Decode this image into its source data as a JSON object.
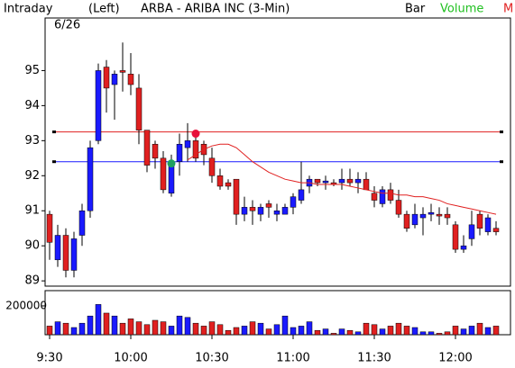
{
  "chart_data": {
    "type": "candlestick",
    "header": {
      "mode": "Intraday",
      "axis_side": "(Left)",
      "title": "ARBA - ARIBA INC  (3-Min)",
      "bar_label": "Bar",
      "volume_label": "Volume",
      "m_label": "M"
    },
    "date": "6/26",
    "categories": [
      "9:30",
      null,
      null,
      null,
      null,
      null,
      null,
      null,
      null,
      null,
      "10:00",
      null,
      null,
      null,
      null,
      null,
      null,
      null,
      null,
      null,
      "10:30",
      null,
      null,
      null,
      null,
      null,
      null,
      null,
      null,
      null,
      "11:00",
      null,
      null,
      null,
      null,
      null,
      null,
      null,
      null,
      null,
      "11:30",
      null,
      null,
      null,
      null,
      null,
      null,
      null,
      null,
      null,
      "12:00",
      null,
      null,
      null,
      null,
      null
    ],
    "open": [
      90.9,
      89.6,
      90.3,
      89.3,
      90.3,
      91.0,
      93.0,
      95.1,
      94.6,
      95.0,
      94.9,
      94.5,
      93.3,
      92.9,
      92.5,
      91.5,
      92.4,
      92.8,
      93.0,
      92.9,
      92.5,
      92.0,
      91.8,
      91.9,
      90.9,
      91.1,
      90.9,
      91.2,
      90.9,
      90.9,
      91.1,
      91.3,
      91.7,
      91.9,
      91.8,
      91.8,
      91.8,
      91.9,
      91.8,
      91.9,
      91.5,
      91.2,
      91.6,
      91.3,
      90.9,
      90.6,
      90.8,
      90.9,
      90.9,
      90.9,
      90.6,
      89.9,
      90.2,
      90.9,
      90.4,
      90.5
    ],
    "high": [
      91.0,
      90.6,
      90.5,
      90.4,
      91.2,
      93.0,
      95.2,
      95.3,
      95.0,
      95.8,
      95.5,
      94.9,
      93.3,
      93.0,
      92.7,
      92.6,
      93.2,
      93.5,
      93.1,
      93.0,
      92.8,
      92.2,
      91.9,
      91.9,
      91.4,
      91.3,
      91.2,
      91.3,
      91.2,
      91.2,
      91.5,
      92.4,
      92.0,
      91.9,
      92.0,
      91.9,
      92.2,
      92.2,
      92.1,
      92.1,
      91.7,
      91.7,
      91.8,
      91.6,
      91.0,
      91.2,
      91.1,
      91.2,
      91.1,
      91.1,
      90.7,
      90.3,
      91.0,
      91.0,
      90.9,
      90.7
    ],
    "low": [
      89.6,
      89.4,
      89.1,
      89.1,
      90.0,
      90.8,
      92.9,
      93.8,
      93.6,
      94.4,
      94.3,
      92.9,
      92.1,
      92.2,
      91.5,
      91.4,
      92.0,
      92.4,
      92.4,
      92.3,
      91.8,
      91.6,
      91.6,
      90.6,
      90.7,
      90.6,
      90.7,
      90.8,
      90.7,
      90.9,
      90.9,
      91.2,
      91.5,
      91.7,
      91.6,
      91.7,
      91.6,
      91.7,
      91.5,
      91.6,
      91.1,
      91.1,
      91.2,
      90.8,
      90.4,
      90.5,
      90.3,
      90.7,
      90.6,
      90.6,
      89.8,
      89.8,
      90.0,
      90.3,
      90.3,
      90.3
    ],
    "close": [
      90.1,
      90.3,
      89.3,
      90.2,
      91.0,
      92.8,
      95.0,
      94.5,
      94.9,
      94.95,
      94.6,
      93.3,
      92.3,
      92.5,
      91.6,
      92.4,
      92.9,
      93.0,
      92.5,
      92.6,
      92.0,
      91.7,
      91.7,
      90.9,
      91.1,
      91.0,
      91.1,
      91.1,
      91.0,
      91.1,
      91.4,
      91.6,
      91.9,
      91.8,
      91.85,
      91.75,
      91.9,
      91.8,
      91.9,
      91.6,
      91.3,
      91.6,
      91.3,
      90.9,
      90.5,
      90.9,
      90.9,
      90.95,
      90.85,
      90.8,
      89.9,
      90.0,
      90.6,
      90.5,
      90.8,
      90.4
    ],
    "volume": [
      60000,
      90000,
      80000,
      50000,
      80000,
      130000,
      210000,
      150000,
      130000,
      80000,
      110000,
      90000,
      70000,
      100000,
      90000,
      60000,
      130000,
      120000,
      80000,
      60000,
      90000,
      70000,
      30000,
      50000,
      60000,
      90000,
      80000,
      40000,
      70000,
      130000,
      50000,
      60000,
      90000,
      30000,
      40000,
      10000,
      40000,
      30000,
      20000,
      80000,
      70000,
      40000,
      60000,
      80000,
      60000,
      50000,
      20000,
      20000,
      10000,
      20000,
      60000,
      40000,
      60000,
      80000,
      50000,
      60000
    ],
    "ma": [
      null,
      null,
      null,
      null,
      null,
      null,
      null,
      null,
      null,
      null,
      null,
      null,
      null,
      null,
      null,
      null,
      null,
      92.45,
      92.6,
      92.75,
      92.85,
      92.9,
      92.9,
      92.8,
      92.6,
      92.4,
      92.25,
      92.1,
      92.0,
      91.9,
      91.85,
      91.8,
      91.8,
      91.75,
      91.75,
      91.75,
      91.75,
      91.7,
      91.65,
      91.6,
      91.55,
      91.5,
      91.5,
      91.45,
      91.45,
      91.4,
      91.4,
      91.35,
      91.3,
      91.2,
      91.15,
      91.1,
      91.05,
      91.0,
      90.95,
      90.9
    ],
    "ma_color": "#e02020",
    "up_color": "#1a1aff",
    "down_color": "#e02020",
    "hlines": [
      {
        "value": 93.25,
        "color": "#e02020"
      },
      {
        "value": 92.4,
        "color": "#1a1aff"
      }
    ],
    "markers": [
      {
        "x": 18,
        "value": 93.2,
        "color": "#e8103a"
      },
      {
        "x": 15,
        "value": 92.35,
        "color": "#20a060"
      }
    ],
    "ylim": [
      88.85,
      96.5
    ],
    "yticks": [
      89,
      90,
      91,
      92,
      93,
      94,
      95
    ],
    "vlim": [
      0,
      306000
    ],
    "vticks": [
      200000
    ]
  }
}
